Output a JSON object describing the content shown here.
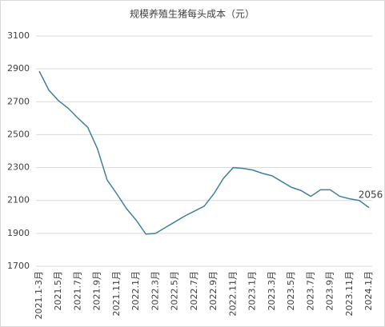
{
  "chart_data": {
    "type": "line",
    "title": "规模养殖生猪每头成本（元）",
    "categories": [
      "2021.1-3月",
      null,
      "2021.5月",
      null,
      "2021.7月",
      null,
      "2021.9月",
      null,
      "2021.11月",
      null,
      "2022.1月",
      null,
      "2022.3月",
      null,
      "2022.5月",
      null,
      "2022.7月",
      null,
      "2022.9月",
      null,
      "2022.11月",
      null,
      "2023.1月",
      null,
      "2023.3月",
      null,
      "2023.5月",
      null,
      "2023.7月",
      null,
      "2023.9月",
      null,
      "2023.11月",
      null,
      "2024.1月"
    ],
    "series": [
      {
        "color": "#41809c",
        "values": [
          2886,
          2770,
          2706,
          2660,
          2600,
          2545,
          2415,
          2225,
          2140,
          2050,
          1980,
          1895,
          1900,
          1935,
          1970,
          2005,
          2035,
          2065,
          2140,
          2235,
          2300,
          2295,
          2285,
          2265,
          2250,
          2215,
          2180,
          2160,
          2125,
          2165,
          2165,
          2125,
          2110,
          2100,
          2056
        ]
      }
    ],
    "label_last": true,
    "ylim": [
      1700,
      3100
    ],
    "yticks": [
      1700,
      1900,
      2100,
      2300,
      2500,
      2700,
      2900,
      3100
    ],
    "grid": true
  }
}
